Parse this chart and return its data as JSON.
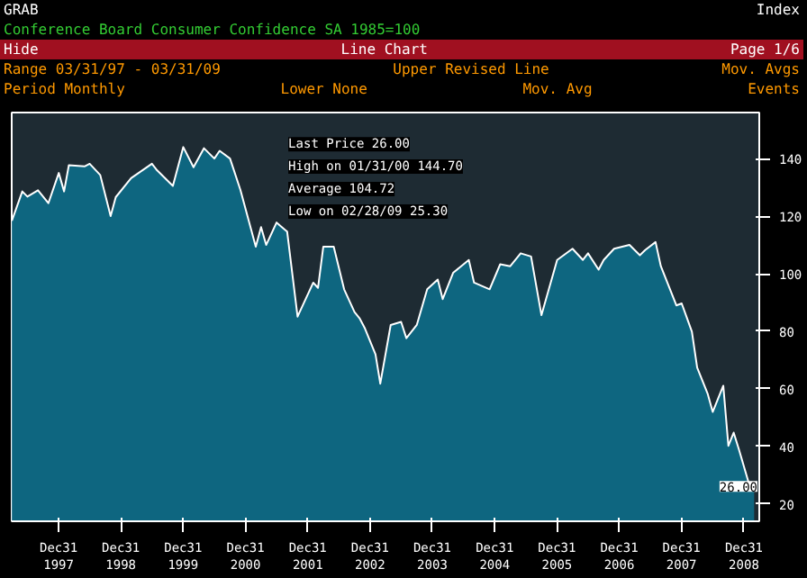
{
  "chart_data": {
    "type": "area",
    "title": "Conference Board Consumer Confidence SA 1985=100",
    "x": [
      "1997-04",
      "1997-06",
      "1997-07",
      "1997-09",
      "1997-11",
      "1998-01",
      "1998-02",
      "1998-03",
      "1998-06",
      "1998-07",
      "1998-09",
      "1998-11",
      "1998-12",
      "1999-03",
      "1999-07",
      "1999-08",
      "1999-11",
      "2000-01",
      "2000-03",
      "2000-05",
      "2000-07",
      "2000-08",
      "2000-10",
      "2000-12",
      "2001-03",
      "2001-04",
      "2001-05",
      "2001-07",
      "2001-09",
      "2001-11",
      "2002-02",
      "2002-03",
      "2002-04",
      "2002-06",
      "2002-08",
      "2002-10",
      "2002-11",
      "2002-12",
      "2003-02",
      "2003-03",
      "2003-05",
      "2003-07",
      "2003-08",
      "2003-10",
      "2003-12",
      "2004-02",
      "2004-03",
      "2004-05",
      "2004-08",
      "2004-09",
      "2004-12",
      "2005-02",
      "2005-04",
      "2005-06",
      "2005-08",
      "2005-10",
      "2006-01",
      "2006-04",
      "2006-06",
      "2006-07",
      "2006-09",
      "2006-10",
      "2006-12",
      "2007-03",
      "2007-05",
      "2007-06",
      "2007-08",
      "2007-09",
      "2007-12",
      "2008-01",
      "2008-03",
      "2008-04",
      "2008-06",
      "2008-07",
      "2008-09",
      "2008-10",
      "2008-11",
      "2008-12",
      "2009-02",
      "2009-03"
    ],
    "series": [
      {
        "color": "#0e6680",
        "values": [
          118.4,
          128.6,
          126.8,
          129,
          124.5,
          135,
          128.6,
          137.7,
          137.3,
          138.2,
          134.3,
          120,
          126.6,
          133.2,
          138.2,
          135.9,
          130.5,
          144,
          137,
          143.6,
          140,
          142.7,
          140,
          129.1,
          109.4,
          116.2,
          110,
          117.8,
          114.6,
          85.1,
          96.9,
          95.1,
          109.4,
          109.4,
          94.6,
          86.7,
          84.4,
          81,
          72,
          61.8,
          82.2,
          83.3,
          77.6,
          82.2,
          94.6,
          98,
          91.2,
          100.3,
          104.8,
          96.9,
          94.6,
          103.3,
          102.6,
          107.1,
          106,
          85.6,
          104.8,
          108.7,
          104.8,
          107.1,
          101.4,
          104.8,
          108.7,
          110,
          106.4,
          108.2,
          111,
          102.6,
          89,
          89.7,
          79.9,
          67.4,
          58.4,
          52,
          61.1,
          40.2,
          44.8,
          39.1,
          26.6,
          26.1
        ]
      }
    ],
    "xlim": [
      "1997-03-31",
      "2009-03-31"
    ],
    "xticks": [
      {
        "value": "1997-12-31",
        "label": "Dec31\n1997"
      },
      {
        "value": "1998-12-31",
        "label": "Dec31\n1998"
      },
      {
        "value": "1999-12-31",
        "label": "Dec31\n1999"
      },
      {
        "value": "2000-12-31",
        "label": "Dec31\n2000"
      },
      {
        "value": "2001-12-31",
        "label": "Dec31\n2001"
      },
      {
        "value": "2002-12-31",
        "label": "Dec31\n2002"
      },
      {
        "value": "2003-12-31",
        "label": "Dec31\n2003"
      },
      {
        "value": "2004-12-31",
        "label": "Dec31\n2004"
      },
      {
        "value": "2005-12-31",
        "label": "Dec31\n2005"
      },
      {
        "value": "2006-12-31",
        "label": "Dec31\n2006"
      },
      {
        "value": "2007-12-31",
        "label": "Dec31\n2007"
      },
      {
        "value": "2008-12-31",
        "label": "Dec31\n2008"
      }
    ],
    "ylim": [
      14,
      156
    ],
    "yticks": [
      20,
      40,
      60,
      80,
      100,
      120,
      140
    ],
    "grid": false,
    "annotations": [
      "GRAB",
      "Index",
      "Hide",
      "Line Chart",
      "Page 1/6",
      "Range 03/31/97 - 03/31/09",
      "Upper Revised Line",
      "Mov. Avgs",
      "Period Monthly",
      "Lower None",
      "Mov. Avg",
      "Events",
      "Last Price 26.00",
      "High on 01/31/00 144.70",
      "Average 104.72",
      "Low on 02/28/09 25.30",
      "26.00"
    ]
  }
}
